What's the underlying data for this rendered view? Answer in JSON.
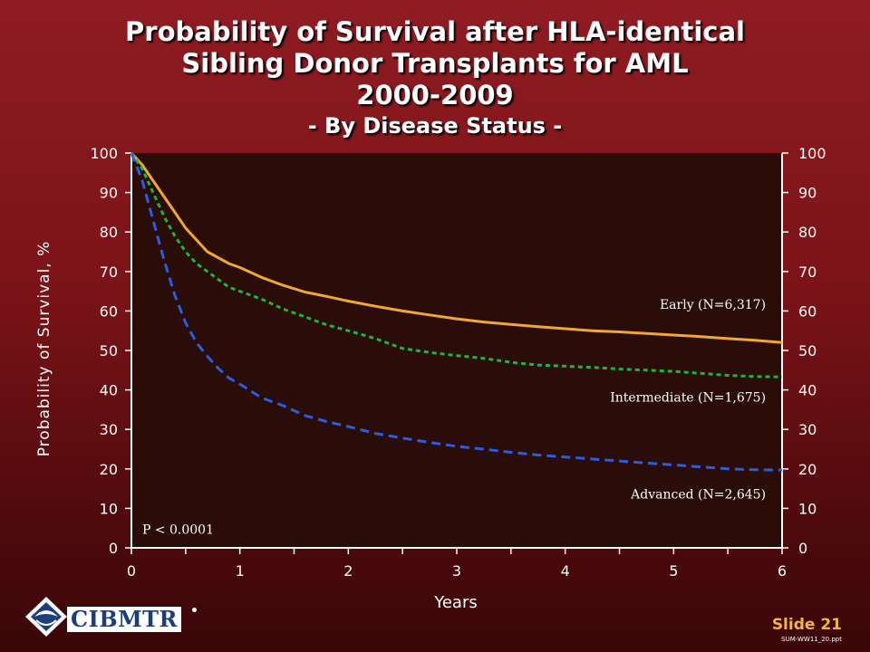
{
  "title": {
    "line1": "Probability of Survival after HLA-identical",
    "line2": "Sibling Donor Transplants for AML",
    "line3": "2000-2009",
    "subtitle": "- By Disease Status -"
  },
  "footer": {
    "logo_text": "CIBMTR",
    "slide_label": "Slide 21",
    "file_ref": "SUM-WW11_20.ppt"
  },
  "colors": {
    "early": "#f0a830",
    "intermediate": "#1fb53a",
    "advanced": "#2a5de0",
    "plot_bg": "#2a0c08"
  },
  "chart_data": {
    "type": "line",
    "xlabel": "Years",
    "ylabel": "Probability of Survival, %",
    "xlim": [
      0,
      6
    ],
    "ylim": [
      0,
      100
    ],
    "x_ticks": [
      0,
      1,
      2,
      3,
      4,
      5,
      6
    ],
    "y_ticks": [
      0,
      10,
      20,
      30,
      40,
      50,
      60,
      70,
      80,
      90,
      100
    ],
    "annotation": "P < 0.0001",
    "series": [
      {
        "name": "Early (N=6,317)",
        "color": "#f0a830",
        "style": "solid",
        "x": [
          0,
          0.1,
          0.2,
          0.3,
          0.4,
          0.5,
          0.6,
          0.7,
          0.8,
          0.9,
          1.0,
          1.2,
          1.4,
          1.6,
          1.8,
          2.0,
          2.25,
          2.5,
          2.75,
          3.0,
          3.25,
          3.5,
          3.75,
          4.0,
          4.25,
          4.5,
          4.75,
          5.0,
          5.25,
          5.5,
          5.75,
          6.0
        ],
        "y": [
          100,
          97,
          93,
          89,
          85,
          81,
          78,
          75,
          73.5,
          72,
          71,
          68.5,
          66.5,
          64.8,
          63.7,
          62.5,
          61.2,
          60,
          59,
          58,
          57.2,
          56.6,
          56,
          55.5,
          55,
          54.7,
          54.3,
          53.9,
          53.5,
          53,
          52.6,
          52
        ]
      },
      {
        "name": "Intermediate (N=1,675)",
        "color": "#1fb53a",
        "style": "short-dash",
        "x": [
          0,
          0.1,
          0.2,
          0.3,
          0.4,
          0.5,
          0.6,
          0.7,
          0.8,
          0.9,
          1.0,
          1.2,
          1.4,
          1.6,
          1.8,
          2.0,
          2.25,
          2.5,
          2.75,
          3.0,
          3.25,
          3.5,
          3.75,
          4.0,
          4.25,
          4.5,
          4.75,
          5.0,
          5.25,
          5.5,
          5.75,
          6.0
        ],
        "y": [
          100,
          96,
          90,
          84,
          79,
          75,
          72,
          70,
          68,
          66,
          65,
          63,
          60.5,
          58.5,
          56.5,
          55,
          53,
          50.5,
          49.5,
          48.7,
          48,
          47,
          46.3,
          46,
          45.7,
          45.3,
          45,
          44.7,
          44.2,
          43.7,
          43.4,
          43.3
        ]
      },
      {
        "name": "Advanced (N=2,645)",
        "color": "#2a5de0",
        "style": "long-dash",
        "x": [
          0,
          0.1,
          0.2,
          0.3,
          0.4,
          0.5,
          0.6,
          0.7,
          0.8,
          0.9,
          1.0,
          1.2,
          1.4,
          1.6,
          1.8,
          2.0,
          2.25,
          2.5,
          2.75,
          3.0,
          3.25,
          3.5,
          3.75,
          4.0,
          4.25,
          4.5,
          4.75,
          5.0,
          5.25,
          5.5,
          5.75,
          6.0
        ],
        "y": [
          100,
          93,
          83,
          73,
          64,
          57,
          52,
          48.5,
          45.5,
          43,
          41.5,
          38,
          36,
          33.5,
          32,
          30.7,
          29,
          27.8,
          26.7,
          25.7,
          25,
          24.2,
          23.5,
          23,
          22.5,
          22,
          21.5,
          21,
          20.5,
          20,
          19.8,
          19.7
        ]
      }
    ],
    "labels": [
      {
        "text": "Early (N=6,317)",
        "x": 5.85,
        "y": 60.5
      },
      {
        "text": "Intermediate (N=1,675)",
        "x": 5.85,
        "y": 37
      },
      {
        "text": "Advanced (N=2,645)",
        "x": 5.85,
        "y": 12.5
      }
    ]
  }
}
